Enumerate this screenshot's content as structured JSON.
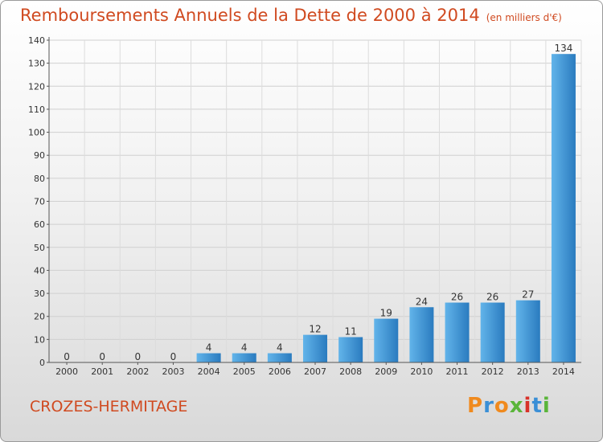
{
  "title": "Remboursements Annuels de la Dette de 2000 à 2014",
  "unit": "(en milliers d'€)",
  "place": "CROZES-HERMITAGE",
  "logo": {
    "text": "Proxiti",
    "colors": [
      "#f08a1e",
      "#3a8fd6",
      "#f08a1e",
      "#5ab53a",
      "#d8322a",
      "#3a8fd6",
      "#5ab53a"
    ]
  },
  "colors": {
    "title": "#d04a20",
    "bar_light": "#5aade6",
    "bar_dark": "#2a7bbf"
  },
  "chart_data": {
    "type": "bar",
    "categories": [
      "2000",
      "2001",
      "2002",
      "2003",
      "2004",
      "2005",
      "2006",
      "2007",
      "2008",
      "2009",
      "2010",
      "2011",
      "2012",
      "2013",
      "2014"
    ],
    "values": [
      0,
      0,
      0,
      0,
      4,
      4,
      4,
      12,
      11,
      19,
      24,
      26,
      26,
      27,
      134
    ],
    "ylim": [
      0,
      140
    ],
    "yticks": [
      0,
      10,
      20,
      30,
      40,
      50,
      60,
      70,
      80,
      90,
      100,
      110,
      120,
      130,
      140
    ],
    "grid": true
  }
}
